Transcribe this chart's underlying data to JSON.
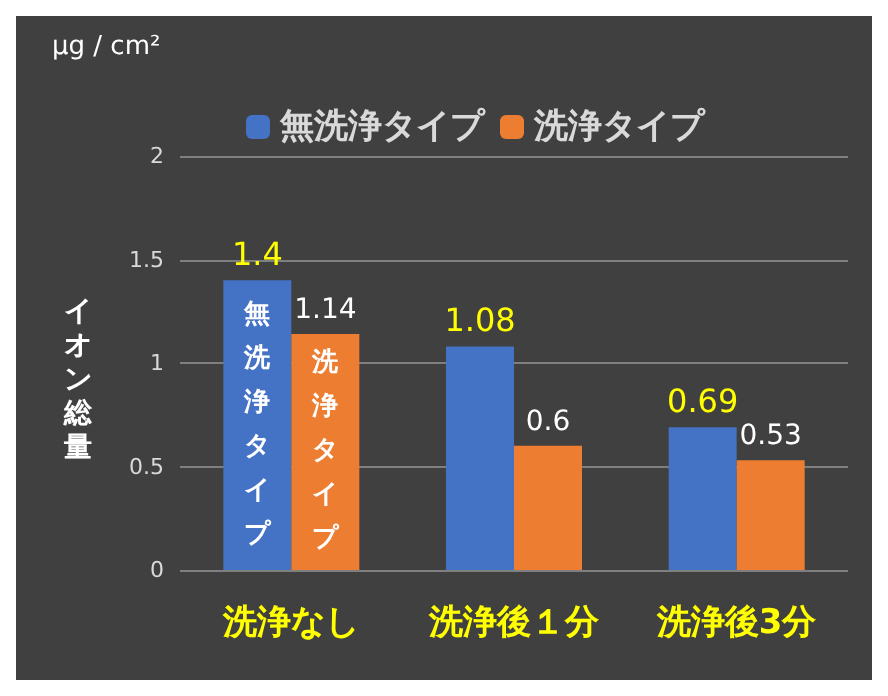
{
  "chart_data": {
    "type": "bar",
    "ylabel": "イオン総量",
    "categories": [
      "洗浄なし",
      "洗浄後１分",
      "洗浄後3分"
    ],
    "series": [
      {
        "name": "無洗浄タイプ",
        "color": "#4472c4",
        "values": [
          1.4,
          1.08,
          0.69
        ]
      },
      {
        "name": "洗浄タイプ",
        "color": "#ed7d31",
        "values": [
          1.14,
          0.6,
          0.53
        ]
      }
    ],
    "ylim": [
      0,
      2
    ],
    "yticks": [
      0,
      0.5,
      1,
      1.5,
      2
    ],
    "grid": "y",
    "legend": "top",
    "data_labels": true,
    "annotations": [
      "µg / cm²",
      {
        "text": "無洗浄タイプ",
        "x": "洗浄なし",
        "y": 0.7
      },
      {
        "text": "洗浄タイプ",
        "x": "洗浄なし",
        "y": 0.57
      }
    ]
  }
}
